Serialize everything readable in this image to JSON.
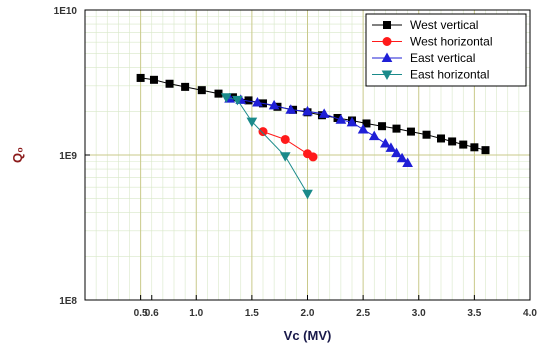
{
  "chart_data": {
    "type": "scatter",
    "xlabel": "Vc (MV)",
    "ylabel": "Q₀",
    "xlim": [
      0.0,
      4.0
    ],
    "ylim": [
      100000000,
      10000000000
    ],
    "y_scale": "log",
    "grid": true,
    "legend_position": "top-right",
    "x_ticks": [
      "0.5",
      "0.6",
      "1.0",
      "1.5",
      "2.0",
      "2.5",
      "3.0",
      "3.5",
      "4.0"
    ],
    "x_tick_values": [
      0.5,
      0.6,
      1.0,
      1.5,
      2.0,
      2.5,
      3.0,
      3.5,
      4.0
    ],
    "y_ticks": [
      {
        "label": "1E10",
        "value": 10000000000
      },
      {
        "label": "1E9",
        "value": 1000000000
      },
      {
        "label": "1E8",
        "value": 100000000
      }
    ],
    "colors": {
      "grid_major": "#c9c98a",
      "grid_minor": "#d8e8c8",
      "axis_title_y": "#8b1a1a",
      "axis_title_x": "#1a1a4a"
    },
    "series": [
      {
        "name": "West vertical",
        "color": "#000000",
        "marker": "square",
        "x": [
          0.5,
          0.62,
          0.76,
          0.9,
          1.05,
          1.2,
          1.33,
          1.47,
          1.6,
          1.73,
          1.87,
          2.0,
          2.13,
          2.27,
          2.4,
          2.53,
          2.67,
          2.8,
          2.93,
          3.07,
          3.2,
          3.3,
          3.4,
          3.5,
          3.6
        ],
        "y": [
          3400000000.0,
          3300000000.0,
          3100000000.0,
          2950000000.0,
          2800000000.0,
          2650000000.0,
          2500000000.0,
          2380000000.0,
          2270000000.0,
          2150000000.0,
          2050000000.0,
          1970000000.0,
          1880000000.0,
          1800000000.0,
          1730000000.0,
          1650000000.0,
          1580000000.0,
          1520000000.0,
          1450000000.0,
          1380000000.0,
          1300000000.0,
          1240000000.0,
          1180000000.0,
          1130000000.0,
          1080000000.0
        ]
      },
      {
        "name": "West horizontal",
        "color": "#ff1a1a",
        "marker": "circle",
        "x": [
          1.6,
          1.8,
          2.0,
          2.05
        ],
        "y": [
          1450000000.0,
          1280000000.0,
          1020000000.0,
          970000000.0
        ]
      },
      {
        "name": "East vertical",
        "color": "#1f1fd6",
        "marker": "triangle-up",
        "x": [
          1.3,
          1.4,
          1.55,
          1.7,
          1.85,
          2.0,
          2.15,
          2.3,
          2.4,
          2.5,
          2.6,
          2.7,
          2.75,
          2.8,
          2.85,
          2.9
        ],
        "y": [
          2450000000.0,
          2400000000.0,
          2300000000.0,
          2200000000.0,
          2050000000.0,
          2000000000.0,
          1920000000.0,
          1750000000.0,
          1680000000.0,
          1500000000.0,
          1350000000.0,
          1200000000.0,
          1120000000.0,
          1030000000.0,
          950000000.0,
          880000000.0
        ]
      },
      {
        "name": "East horizontal",
        "color": "#1a8a8a",
        "marker": "triangle-down",
        "x": [
          1.27,
          1.37,
          1.5,
          1.8,
          2.0
        ],
        "y": [
          2500000000.0,
          2400000000.0,
          1700000000.0,
          980000000.0,
          540000000.0
        ]
      }
    ]
  }
}
